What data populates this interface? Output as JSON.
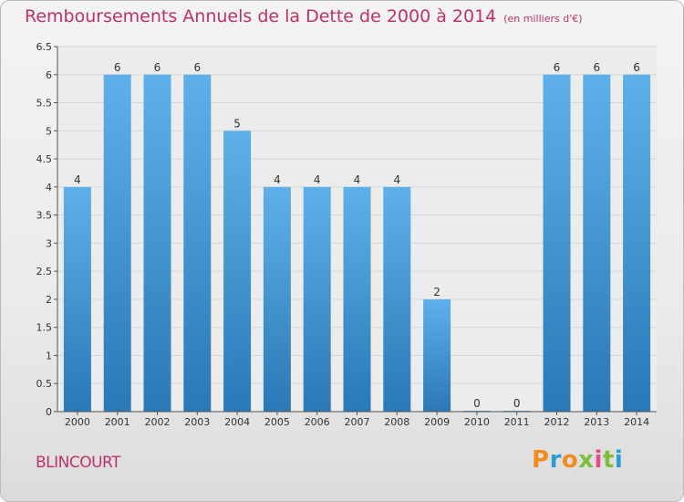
{
  "header": {
    "title": "Remboursements Annuels de la Dette de 2000 à 2014",
    "unit": "(en milliers d'€)"
  },
  "footer": {
    "commune": "BLINCOURT",
    "logo_letters": [
      "P",
      "r",
      "o",
      "x",
      "i",
      "t",
      "i"
    ]
  },
  "colors": {
    "title": "#c0306a",
    "bar_top": "#5eb0ea",
    "bar_bottom": "#2a78b6",
    "logo": [
      "#f28c1e",
      "#2f9bd6",
      "#f28c1e",
      "#7bbf3a",
      "#e64b8a",
      "#7bbf3a",
      "#2f9bd6"
    ]
  },
  "chart_data": {
    "type": "bar",
    "title": "Remboursements Annuels de la Dette de 2000 à 2014",
    "xlabel": "",
    "ylabel": "",
    "categories": [
      "2000",
      "2001",
      "2002",
      "2003",
      "2004",
      "2005",
      "2006",
      "2007",
      "2008",
      "2009",
      "2010",
      "2011",
      "2012",
      "2013",
      "2014"
    ],
    "values": [
      4,
      6,
      6,
      6,
      5,
      4,
      4,
      4,
      4,
      2,
      0,
      0,
      6,
      6,
      6
    ],
    "data_labels": [
      "4",
      "6",
      "6",
      "6",
      "5",
      "4",
      "4",
      "4",
      "4",
      "2",
      "0",
      "0",
      "6",
      "6",
      "6"
    ],
    "ylim": [
      0,
      6.5
    ],
    "yticks": [
      0,
      0.5,
      1,
      1.5,
      2,
      2.5,
      3,
      3.5,
      4,
      4.5,
      5,
      5.5,
      6,
      6.5
    ],
    "ytick_labels": [
      "0",
      "0.5",
      "1",
      "1.5",
      "2",
      "2.5",
      "3",
      "3.5",
      "4",
      "4.5",
      "5",
      "5.5",
      "6",
      "6.5"
    ],
    "grid": true
  }
}
